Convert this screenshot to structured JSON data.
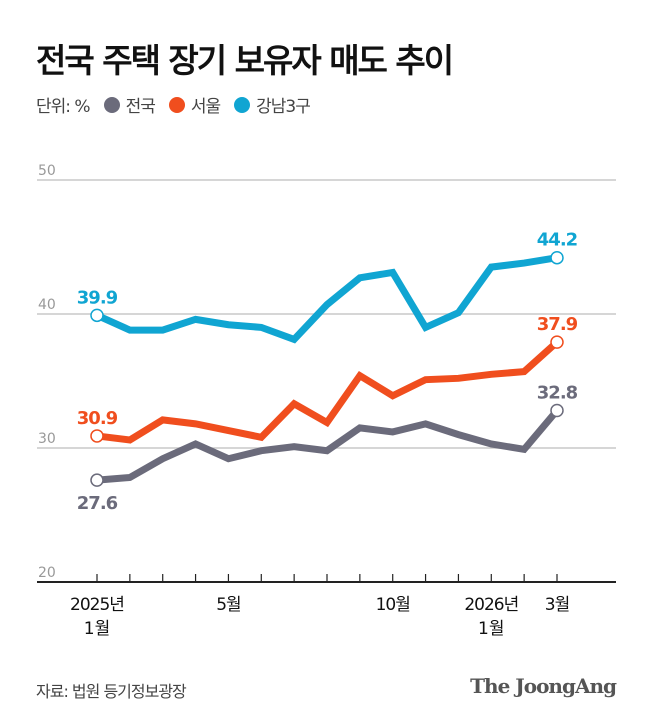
{
  "title": "전국 주택 장기 보유자 매도 추이",
  "legend": {
    "unit": "단위: %",
    "items": [
      "전국",
      "서울",
      "강남3구"
    ]
  },
  "source": "자료: 법원 등기정보광장",
  "logo": "The JoongAng",
  "chart_data": {
    "type": "line",
    "x": [
      "2025-01",
      "2025-02",
      "2025-03",
      "2025-04",
      "2025-05",
      "2025-06",
      "2025-07",
      "2025-08",
      "2025-09",
      "2025-10",
      "2025-11",
      "2025-12",
      "2026-01",
      "2026-02",
      "2026-03"
    ],
    "x_tick_labels": [
      {
        "index": 0,
        "line1": "2025년",
        "line2": "1월"
      },
      {
        "index": 4,
        "line1": "5월",
        "line2": ""
      },
      {
        "index": 9,
        "line1": "10월",
        "line2": ""
      },
      {
        "index": 12,
        "line1": "2026년",
        "line2": "1월"
      },
      {
        "index": 14,
        "line1": "3월",
        "line2": ""
      }
    ],
    "yticks": [
      20,
      30,
      40,
      50
    ],
    "ylim": [
      20,
      50
    ],
    "grid": true,
    "series": [
      {
        "name": "전국",
        "color": "#6b6b7b",
        "values": [
          27.6,
          27.8,
          29.2,
          30.3,
          29.2,
          29.8,
          30.1,
          29.8,
          31.5,
          31.2,
          31.8,
          31.0,
          30.3,
          29.9,
          32.8
        ],
        "labels": {
          "0": "27.6",
          "14": "32.8"
        }
      },
      {
        "name": "서울",
        "color": "#f04e1e",
        "values": [
          30.9,
          30.6,
          32.1,
          31.8,
          31.3,
          30.8,
          33.3,
          31.9,
          35.4,
          33.9,
          35.1,
          35.2,
          35.5,
          35.7,
          37.9
        ],
        "labels": {
          "0": "30.9",
          "14": "37.9"
        }
      },
      {
        "name": "강남3구",
        "color": "#10a5d2",
        "values": [
          39.9,
          38.8,
          38.8,
          39.6,
          39.2,
          39.0,
          38.1,
          40.7,
          42.7,
          43.1,
          39.0,
          40.1,
          43.5,
          43.8,
          44.2
        ],
        "labels": {
          "0": "39.9",
          "14": "44.2"
        }
      }
    ]
  }
}
